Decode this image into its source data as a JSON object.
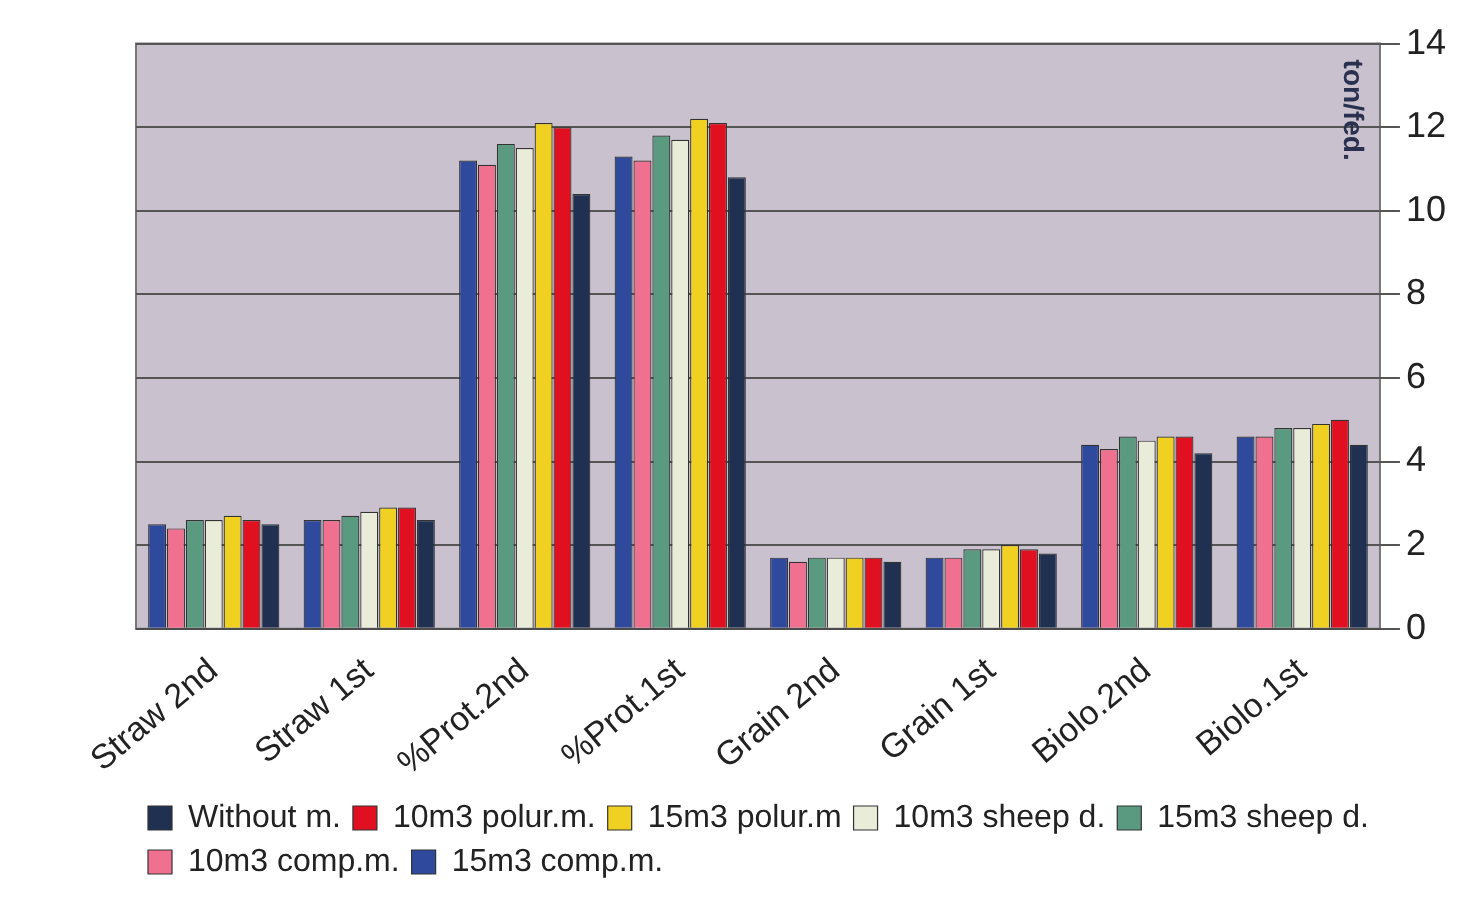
{
  "chart_data": {
    "type": "bar",
    "ylabel": "ton/fed.",
    "categories": [
      "Straw 2nd",
      "Straw 1st",
      "%Prot.2nd",
      "%Prot.1st",
      "Grain 2nd",
      "Grain 1st",
      "Biolo.2nd",
      "Biolo.1st"
    ],
    "series": [
      {
        "name": "15m3 comp.m.",
        "color": "#2f4a9c",
        "values": [
          2.5,
          2.6,
          11.2,
          11.3,
          1.7,
          1.7,
          4.4,
          4.6
        ]
      },
      {
        "name": "10m3 comp.m.",
        "color": "#f07090",
        "values": [
          2.4,
          2.6,
          11.1,
          11.2,
          1.6,
          1.7,
          4.3,
          4.6
        ]
      },
      {
        "name": "15m3 sheep d.",
        "color": "#5a9a80",
        "values": [
          2.6,
          2.7,
          11.6,
          11.8,
          1.7,
          1.9,
          4.6,
          4.8
        ]
      },
      {
        "name": "10m3 sheep d.",
        "color": "#e8ecd8",
        "values": [
          2.6,
          2.8,
          11.5,
          11.7,
          1.7,
          1.9,
          4.5,
          4.8
        ]
      },
      {
        "name": "15m3 polur.m",
        "color": "#f0d020",
        "values": [
          2.7,
          2.9,
          12.1,
          12.2,
          1.7,
          2.0,
          4.6,
          4.9
        ]
      },
      {
        "name": "10m3 polur.m.",
        "color": "#e01020",
        "values": [
          2.6,
          2.9,
          12.0,
          12.1,
          1.7,
          1.9,
          4.6,
          5.0
        ]
      },
      {
        "name": "Without m.",
        "color": "#203050",
        "values": [
          2.5,
          2.6,
          10.4,
          10.8,
          1.6,
          1.8,
          4.2,
          4.4
        ]
      }
    ],
    "ylim": [
      0,
      14
    ],
    "yticks": [
      0,
      2,
      4,
      6,
      8,
      10,
      12,
      14
    ],
    "grid": "y",
    "legend": "bottom"
  }
}
